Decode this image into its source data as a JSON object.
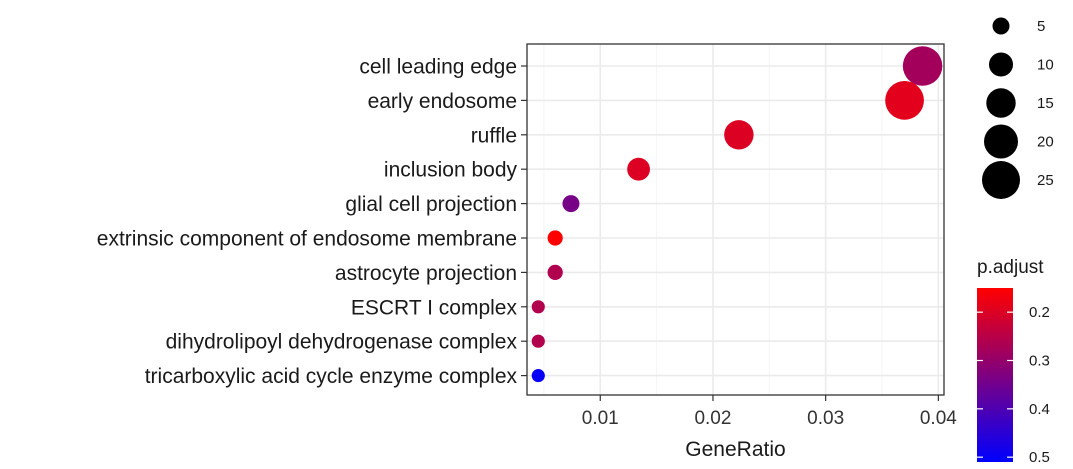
{
  "chart_data": {
    "type": "scatter",
    "xlabel": "GeneRatio",
    "ylabel": "",
    "xlim": [
      0.0035,
      0.0405
    ],
    "x_ticks": [
      0.01,
      0.02,
      0.03,
      0.04
    ],
    "x_tick_labels": [
      "0.01",
      "0.02",
      "0.03",
      "0.04"
    ],
    "grid": true,
    "categories": [
      "cell leading edge",
      "early endosome",
      "ruffle",
      "inclusion body",
      "glial cell projection",
      "extrinsic component of endosome membrane",
      "astrocyte projection",
      "ESCRT I complex",
      "dihydrolipoyl dehydrogenase complex",
      "tricarboxylic acid cycle enzyme complex"
    ],
    "points": [
      {
        "category": "cell leading edge",
        "x": 0.0386,
        "count": 27,
        "p_adjust": 0.28
      },
      {
        "category": "early endosome",
        "x": 0.037,
        "count": 26,
        "p_adjust": 0.19
      },
      {
        "category": "ruffle",
        "x": 0.0223,
        "count": 15,
        "p_adjust": 0.2
      },
      {
        "category": "inclusion body",
        "x": 0.0134,
        "count": 9,
        "p_adjust": 0.2
      },
      {
        "category": "glial cell projection",
        "x": 0.0074,
        "count": 5,
        "p_adjust": 0.34
      },
      {
        "category": "extrinsic component of endosome membrane",
        "x": 0.006,
        "count": 4,
        "p_adjust": 0.15
      },
      {
        "category": "astrocyte projection",
        "x": 0.006,
        "count": 4,
        "p_adjust": 0.26
      },
      {
        "category": "ESCRT I complex",
        "x": 0.0045,
        "count": 3,
        "p_adjust": 0.26
      },
      {
        "category": "dihydrolipoyl dehydrogenase complex",
        "x": 0.0045,
        "count": 3,
        "p_adjust": 0.26
      },
      {
        "category": "tricarboxylic acid cycle enzyme complex",
        "x": 0.0045,
        "count": 3,
        "p_adjust": 0.5
      }
    ],
    "size_legend": {
      "title": "",
      "values": [
        5,
        10,
        15,
        20,
        25
      ],
      "labels": [
        "5",
        "10",
        "15",
        "20",
        "25"
      ]
    },
    "color_legend": {
      "title": "p.adjust",
      "range": [
        0.15,
        0.51
      ],
      "ticks": [
        0.2,
        0.3,
        0.4,
        0.5
      ],
      "tick_labels": [
        "0.2",
        "0.3",
        "0.4",
        "0.5"
      ],
      "low_color": "#ff0000",
      "high_color": "#0000ff"
    },
    "colors": {
      "panel_border": "#333333",
      "grid_major": "#ebebeb",
      "grid_minor": "#f5f5f5"
    }
  }
}
